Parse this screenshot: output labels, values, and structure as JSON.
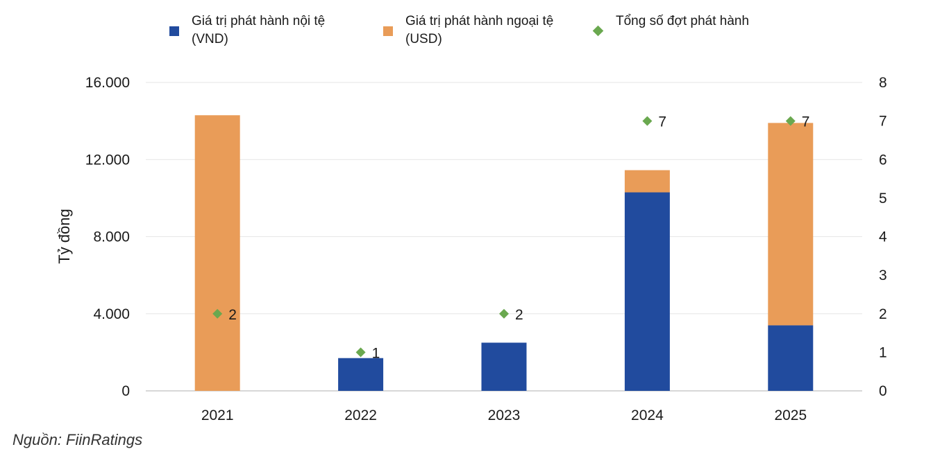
{
  "colors": {
    "vnd": "#214b9e",
    "usd": "#e99c58",
    "count": "#6aa84f",
    "grid": "#e6e6e6",
    "axis": "#bfbfbf"
  },
  "legend": {
    "vnd": "Giá trị phát hành nội tệ (VND)",
    "usd": "Giá trị phát hành ngoại tệ (USD)",
    "count": "Tổng số đợt phát hành"
  },
  "source": "Nguồn: FiinRatings",
  "chart_data": {
    "type": "bar",
    "stacked": true,
    "categories": [
      "2021",
      "2022",
      "2023",
      "2024",
      "2025"
    ],
    "series": [
      {
        "name": "Giá trị phát hành nội tệ (VND)",
        "values": [
          0,
          1700,
          2500,
          10300,
          3400
        ],
        "axis": "left"
      },
      {
        "name": "Giá trị phát hành ngoại tệ (USD)",
        "values": [
          14300,
          0,
          0,
          1150,
          10500
        ],
        "axis": "left"
      },
      {
        "name": "Tổng số đợt phát hành",
        "values": [
          2,
          1,
          2,
          7,
          7
        ],
        "axis": "right",
        "marker": "diamond",
        "labels": [
          "2",
          "1",
          "2",
          "7",
          "7"
        ]
      }
    ],
    "ylabel": "Tỷ đồng",
    "ylim": [
      0,
      16000
    ],
    "yticks": [
      "0",
      "4.000",
      "8.000",
      "12.000",
      "16.000"
    ],
    "y2lim": [
      0,
      8
    ],
    "y2ticks": [
      "0",
      "1",
      "2",
      "3",
      "4",
      "5",
      "6",
      "7",
      "8"
    ],
    "grid": true,
    "legend_position": "top"
  }
}
